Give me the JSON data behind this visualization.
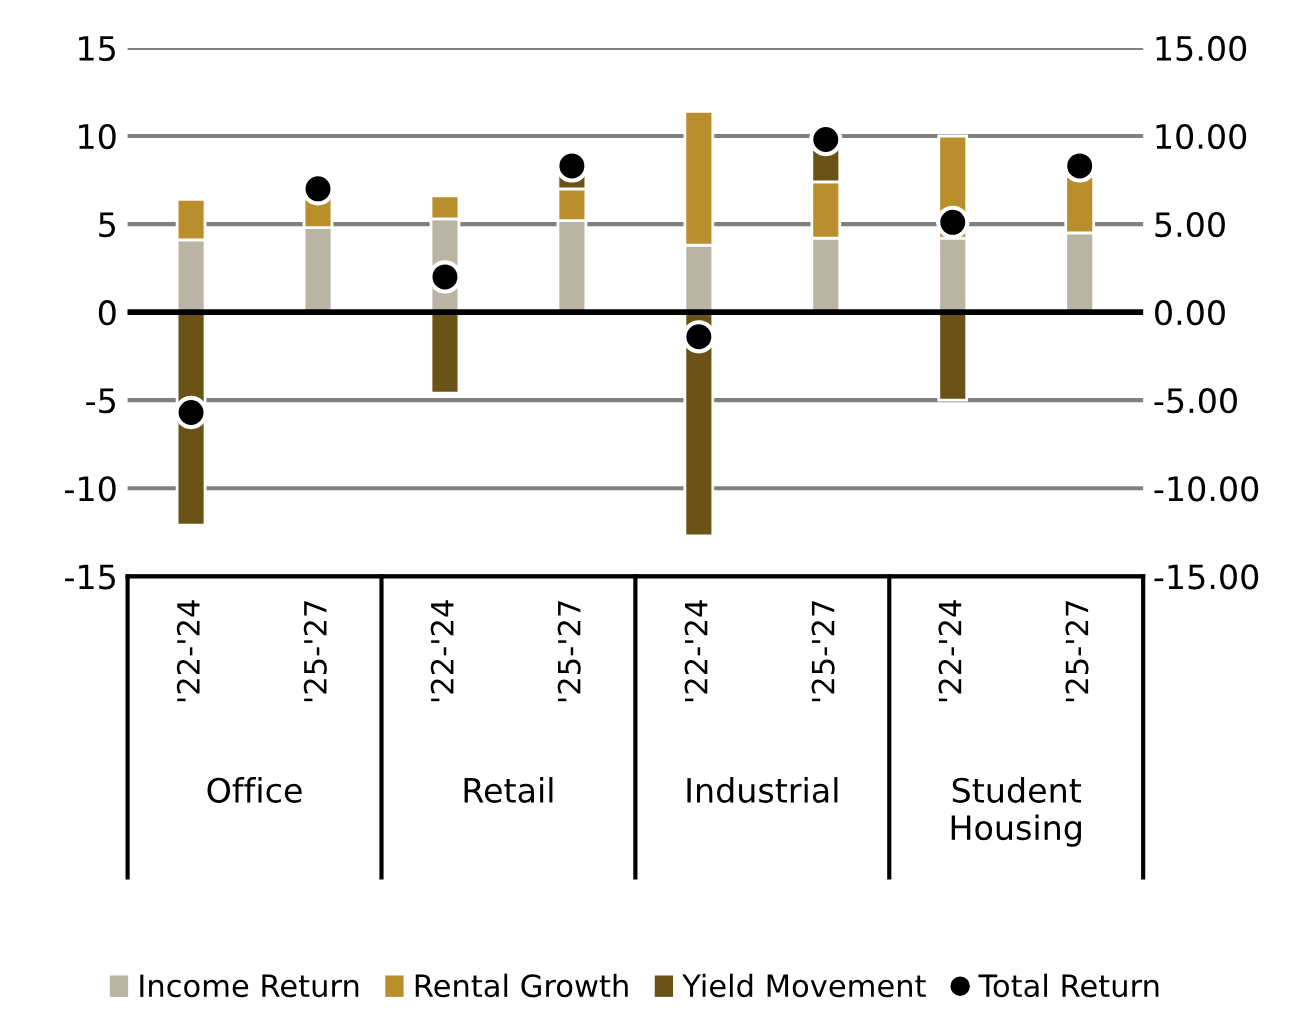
{
  "chart_data": {
    "type": "bar",
    "stacked": true,
    "categories": [
      "'22-'24",
      "'25-'27",
      "'22-'24",
      "'25-'27",
      "'22-'24",
      "'25-'27",
      "'22-'24",
      "'25-'27"
    ],
    "series": [
      {
        "name": "Income Return",
        "color": "#bab4a4",
        "values": [
          4.1,
          4.8,
          5.3,
          5.2,
          3.8,
          4.2,
          4.2,
          4.5
        ]
      },
      {
        "name": "Rental Growth",
        "color": "#b98f2e",
        "values": [
          2.3,
          1.7,
          1.3,
          1.8,
          7.6,
          3.2,
          5.8,
          3.2
        ]
      },
      {
        "name": "Yield Movement",
        "color": "#6b5216",
        "values": [
          -12.1,
          null,
          -4.6,
          0.8,
          -12.7,
          1.9,
          -5.0,
          null
        ]
      },
      {
        "name": "Total Return",
        "type": "scatter",
        "color": "#000000",
        "values": [
          -5.7,
          7.0,
          2.0,
          8.3,
          -1.4,
          9.8,
          5.1,
          8.3
        ]
      }
    ],
    "ylim": [
      -15,
      15
    ],
    "yticks": [
      -15,
      -10,
      -5,
      0,
      5,
      10,
      15
    ],
    "y2lim": [
      -15,
      15
    ],
    "y2ticks": [
      {
        "value": -15,
        "label": "-15.00"
      },
      {
        "value": -10,
        "label": "-10.00"
      },
      {
        "value": -5,
        "label": "-5.00"
      },
      {
        "value": 0,
        "label": "0.00"
      },
      {
        "value": 5,
        "label": "5.00"
      },
      {
        "value": 10,
        "label": "10.00"
      },
      {
        "value": 15,
        "label": "15.00"
      }
    ],
    "annotations": [
      "Office",
      "Retail",
      "Industrial",
      "Student\nHousing"
    ],
    "ref_lines": [
      {
        "axis": "y",
        "value": 0,
        "color": "#000000"
      }
    ],
    "grid": "y",
    "legend": "bottom",
    "marker": "circle"
  }
}
